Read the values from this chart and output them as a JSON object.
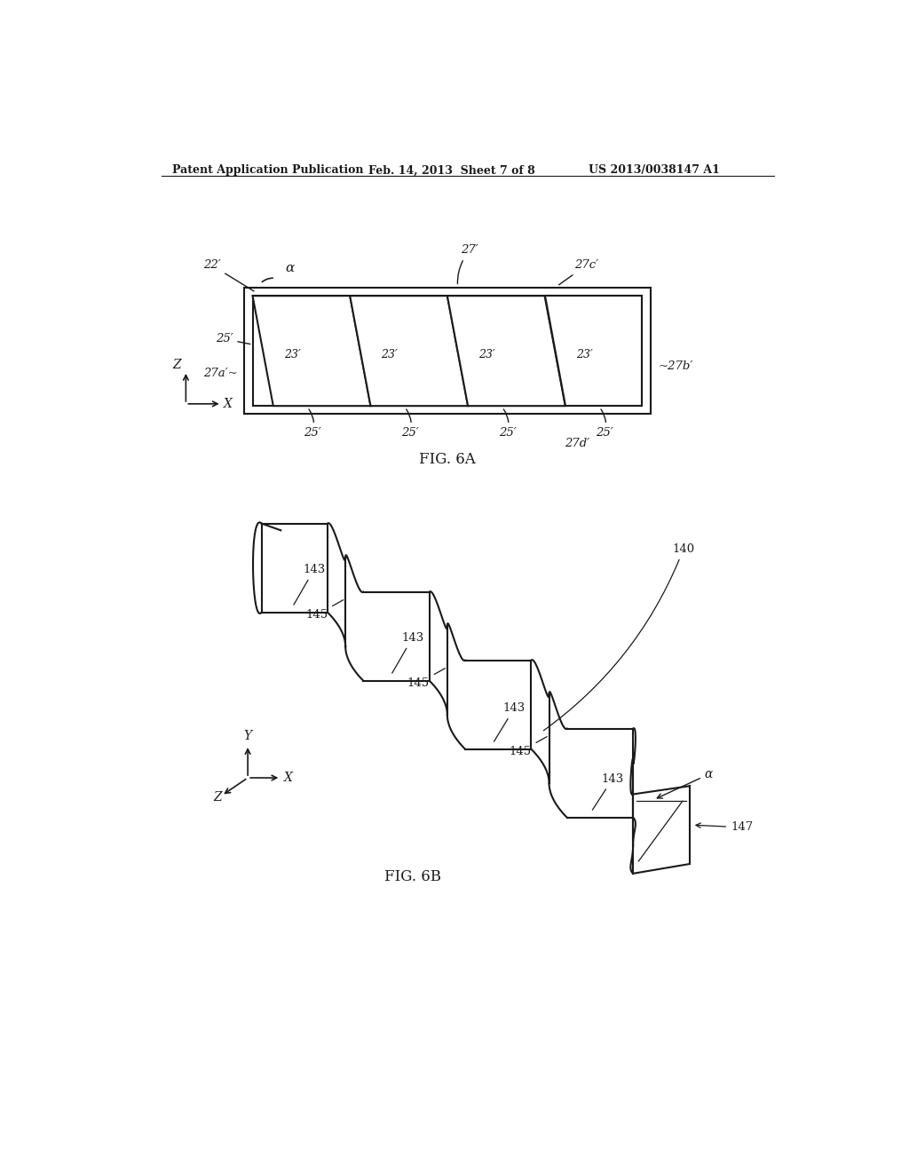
{
  "background_color": "#ffffff",
  "header_left": "Patent Application Publication",
  "header_mid": "Feb. 14, 2013  Sheet 7 of 8",
  "header_right": "US 2013/0038147 A1",
  "fig6a_label": "FIG. 6A",
  "fig6b_label": "FIG. 6B",
  "line_color": "#1a1a1a",
  "text_color": "#1a1a1a"
}
